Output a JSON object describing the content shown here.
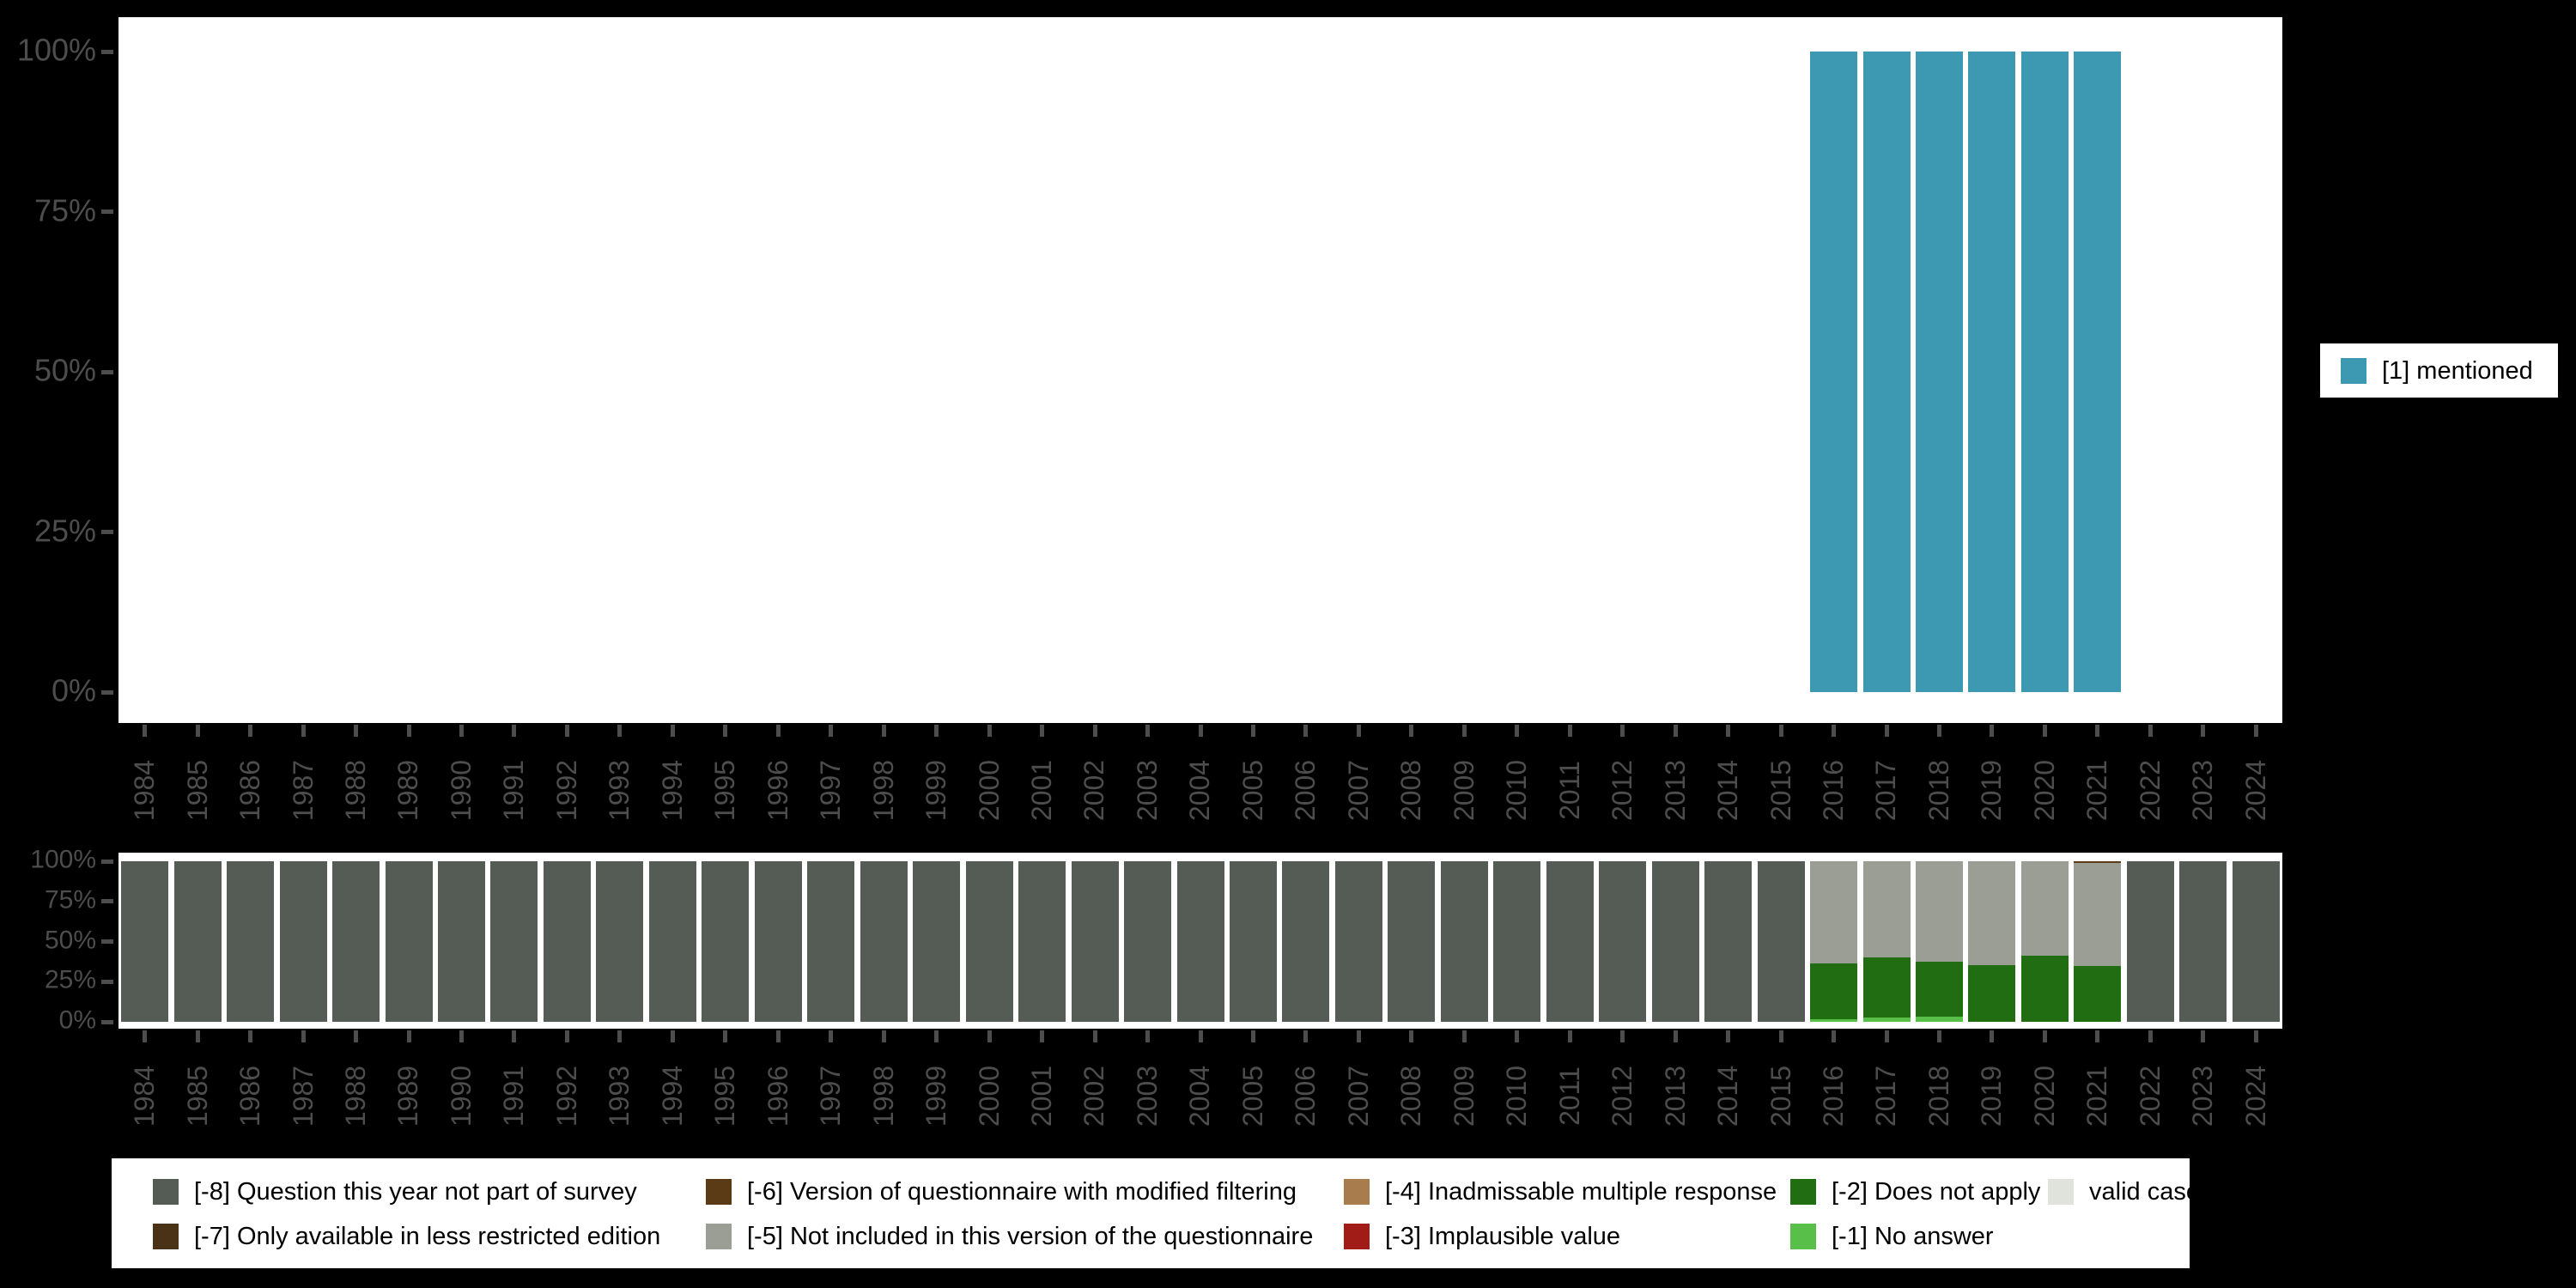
{
  "page": {
    "background": "#000000",
    "plot_background": "#FFFFFF",
    "axis_text_color": "#4D4D4D",
    "legend_text_color": "#000000"
  },
  "colors": {
    "1": "#3D99B2",
    "-1": "#58C048",
    "-2": "#216E12",
    "-3": "#A11C17",
    "-4": "#A97C4E",
    "-5": "#9A9E95",
    "-6": "#5B3A16",
    "-7": "#4A3217",
    "-8": "#555C55",
    "valid": "#DFE3DB"
  },
  "top_chart_legend": {
    "label": "[1] mentioned",
    "color_code": "1"
  },
  "bottom_legend": {
    "columns": [
      [
        {
          "code": "-8",
          "label": "[-8] Question this year not part of survey"
        },
        {
          "code": "-7",
          "label": "[-7] Only available in less restricted edition"
        }
      ],
      [
        {
          "code": "-6",
          "label": "[-6] Version of questionnaire with modified filtering"
        },
        {
          "code": "-5",
          "label": "[-5] Not included in this version of the questionnaire"
        }
      ],
      [
        {
          "code": "-4",
          "label": "[-4] Inadmissable multiple response"
        },
        {
          "code": "-3",
          "label": "[-3] Implausible value"
        }
      ],
      [
        {
          "code": "-2",
          "label": "[-2] Does not apply"
        },
        {
          "code": "-1",
          "label": "[-1] No answer"
        }
      ],
      [
        {
          "code": "valid",
          "label": "valid cases"
        }
      ]
    ]
  },
  "chart_data": [
    {
      "type": "bar",
      "subtype": "stacked-percent",
      "position": "top",
      "title": "",
      "xlabel": "",
      "ylabel": "",
      "ylim": [
        0,
        100
      ],
      "grid": false,
      "legend_position": "right",
      "yticks": [
        "100%",
        "75%",
        "50%",
        "25%",
        "0%"
      ],
      "categories": [
        "1984",
        "1985",
        "1986",
        "1987",
        "1988",
        "1989",
        "1990",
        "1991",
        "1992",
        "1993",
        "1994",
        "1995",
        "1996",
        "1997",
        "1998",
        "1999",
        "2000",
        "2001",
        "2002",
        "2003",
        "2004",
        "2005",
        "2006",
        "2007",
        "2008",
        "2009",
        "2010",
        "2011",
        "2012",
        "2013",
        "2014",
        "2015",
        "2016",
        "2017",
        "2018",
        "2019",
        "2020",
        "2021",
        "2022",
        "2023",
        "2024"
      ],
      "series": [
        {
          "name": "[1] mentioned",
          "color_code": "1",
          "values_by_year": {
            "2016": 100,
            "2017": 100,
            "2018": 100,
            "2019": 100,
            "2020": 100,
            "2021": 100
          }
        }
      ]
    },
    {
      "type": "bar",
      "subtype": "stacked-percent",
      "position": "bottom",
      "title": "",
      "xlabel": "",
      "ylabel": "",
      "ylim": [
        0,
        100
      ],
      "grid": false,
      "legend_position": "bottom",
      "yticks": [
        "100%",
        "75%",
        "50%",
        "25%",
        "0%"
      ],
      "categories": [
        "1984",
        "1985",
        "1986",
        "1987",
        "1988",
        "1989",
        "1990",
        "1991",
        "1992",
        "1993",
        "1994",
        "1995",
        "1996",
        "1997",
        "1998",
        "1999",
        "2000",
        "2001",
        "2002",
        "2003",
        "2004",
        "2005",
        "2006",
        "2007",
        "2008",
        "2009",
        "2010",
        "2011",
        "2012",
        "2013",
        "2014",
        "2015",
        "2016",
        "2017",
        "2018",
        "2019",
        "2020",
        "2021",
        "2022",
        "2023",
        "2024"
      ],
      "stack_order_bottom_to_top": [
        "valid",
        "-1",
        "-2",
        "-3",
        "-4",
        "-5",
        "-6",
        "-7",
        "-8"
      ],
      "default_stack": [
        {
          "code": "-8",
          "value": 100
        }
      ],
      "bars_by_year": {
        "2016": [
          {
            "code": "-1",
            "value": 1.4
          },
          {
            "code": "-2",
            "value": 35.0
          },
          {
            "code": "-5",
            "value": 63.6
          }
        ],
        "2017": [
          {
            "code": "-1",
            "value": 2.7
          },
          {
            "code": "-2",
            "value": 37.4
          },
          {
            "code": "-5",
            "value": 59.9
          }
        ],
        "2018": [
          {
            "code": "-1",
            "value": 3.0
          },
          {
            "code": "-2",
            "value": 34.4
          },
          {
            "code": "-5",
            "value": 62.6
          }
        ],
        "2019": [
          {
            "code": "-2",
            "value": 35.3
          },
          {
            "code": "-5",
            "value": 64.7
          }
        ],
        "2020": [
          {
            "code": "-2",
            "value": 41.2
          },
          {
            "code": "-5",
            "value": 58.8
          }
        ],
        "2021": [
          {
            "code": "-2",
            "value": 34.8
          },
          {
            "code": "-5",
            "value": 64.2
          },
          {
            "code": "-6",
            "value": 1.0
          }
        ]
      }
    }
  ]
}
